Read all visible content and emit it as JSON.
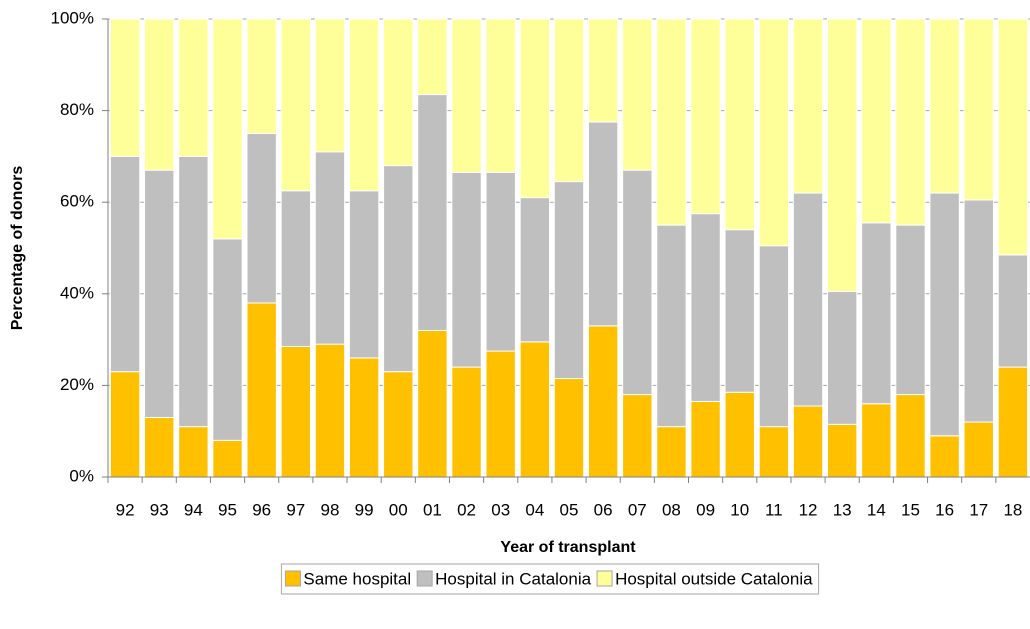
{
  "chart_data": {
    "type": "stacked_bar",
    "y_label": "Percentage of donors",
    "x_label": "Year of transplant",
    "categories": [
      "92",
      "93",
      "94",
      "95",
      "96",
      "97",
      "98",
      "99",
      "00",
      "01",
      "02",
      "03",
      "04",
      "05",
      "06",
      "07",
      "08",
      "09",
      "10",
      "11",
      "12",
      "13",
      "14",
      "15",
      "16",
      "17",
      "18"
    ],
    "series": [
      {
        "name": "Same hospital",
        "color": "#FFC000",
        "values": [
          23,
          13,
          11,
          8,
          38,
          28.5,
          29,
          26,
          23,
          32,
          24,
          27.5,
          29.5,
          21.5,
          33,
          18,
          11,
          16.5,
          18.5,
          11,
          15.5,
          11.5,
          16,
          18,
          9,
          12,
          24
        ]
      },
      {
        "name": "Hospital in Catalonia",
        "color": "#BFBFBF",
        "values": [
          47,
          54,
          59,
          44,
          37,
          34,
          42,
          36.5,
          45,
          51.5,
          42.5,
          39,
          31.5,
          43,
          44.5,
          49,
          44,
          41,
          35.5,
          39.5,
          46.5,
          29,
          39.5,
          37,
          53,
          48.5,
          24.5
        ]
      },
      {
        "name": "Hospital outside Catalonia",
        "color": "#FFFF99",
        "values": [
          30,
          33,
          30,
          48,
          25,
          37.5,
          29,
          37.5,
          32,
          16.5,
          33.5,
          33.5,
          39,
          35.5,
          22.5,
          33,
          45,
          42.5,
          46,
          49.5,
          38,
          59.5,
          44.5,
          45,
          38,
          39.5,
          51.5
        ]
      }
    ],
    "ylim": [
      0,
      100
    ],
    "yticks": [
      {
        "value": 0,
        "label": "0%"
      },
      {
        "value": 20,
        "label": "20%"
      },
      {
        "value": 40,
        "label": "40%"
      },
      {
        "value": 60,
        "label": "60%"
      },
      {
        "value": 80,
        "label": "80%"
      },
      {
        "value": 100,
        "label": "100%"
      }
    ],
    "grid": true,
    "legend": "bottom"
  }
}
